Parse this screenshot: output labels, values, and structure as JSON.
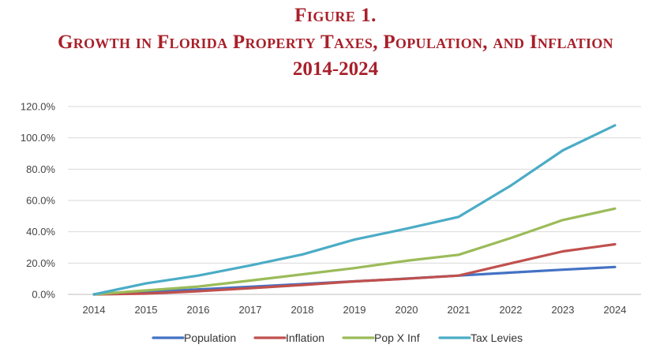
{
  "title_line1": "Figure 1.",
  "title_line2": "Growth in Florida Property Taxes,  Population, and Inflation",
  "title_line3": "2014-2024",
  "chart_data": {
    "type": "line",
    "x": [
      "2014",
      "2015",
      "2016",
      "2017",
      "2018",
      "2019",
      "2020",
      "2021",
      "2022",
      "2023",
      "2024"
    ],
    "ylim": [
      0,
      120
    ],
    "yticks": [
      "0.0%",
      "20.0%",
      "40.0%",
      "60.0%",
      "80.0%",
      "100.0%",
      "120.0%"
    ],
    "grid": true,
    "legend_position": "bottom",
    "series": [
      {
        "name": "Population",
        "color": "#4472c4",
        "values": [
          0,
          1.5,
          3.2,
          4.9,
          6.6,
          8.3,
          10.1,
          12.0,
          13.9,
          15.8,
          17.5
        ]
      },
      {
        "name": "Inflation",
        "color": "#c0504d",
        "values": [
          0,
          0.5,
          2.0,
          4.0,
          6.0,
          8.3,
          10.0,
          12.0,
          19.8,
          27.5,
          32.0
        ]
      },
      {
        "name": "Pop X Inf",
        "color": "#9bbb59",
        "values": [
          0,
          2.5,
          5.0,
          8.8,
          12.8,
          16.8,
          21.5,
          25.3,
          36.0,
          47.5,
          54.8
        ]
      },
      {
        "name": "Tax Levies",
        "color": "#4bacc6",
        "values": [
          0,
          7.0,
          12.0,
          18.5,
          25.5,
          35.0,
          42.0,
          49.5,
          69.5,
          92.0,
          108.0
        ]
      }
    ]
  }
}
